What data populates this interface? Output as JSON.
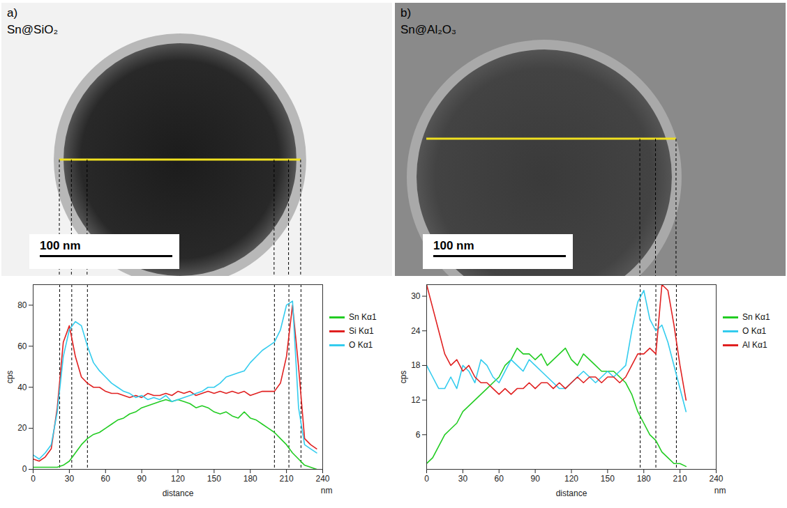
{
  "chart_data": [
    {
      "type": "line",
      "panel_label": "a)",
      "title": "Sn@SiO₂",
      "scale_bar": "100 nm",
      "xlabel": "distance",
      "x_unit": "nm",
      "ylabel": "cps",
      "xlim": [
        0,
        240
      ],
      "xticks": [
        0,
        30,
        60,
        90,
        120,
        150,
        180,
        210,
        240
      ],
      "ylim": [
        0,
        90
      ],
      "yticks": [
        0,
        20,
        40,
        60,
        80
      ],
      "vlines": [
        22,
        32,
        45,
        200,
        212,
        222
      ],
      "legend": "right",
      "x": [
        0,
        5,
        10,
        15,
        20,
        25,
        30,
        35,
        40,
        45,
        50,
        55,
        60,
        65,
        70,
        75,
        80,
        85,
        90,
        95,
        100,
        105,
        110,
        115,
        120,
        125,
        130,
        135,
        140,
        145,
        150,
        155,
        160,
        165,
        170,
        175,
        180,
        185,
        190,
        195,
        200,
        205,
        210,
        215,
        220,
        225,
        230,
        235
      ],
      "series": [
        {
          "name": "Sn Kα1",
          "color": "#22cc22",
          "values": [
            1,
            1,
            1,
            1,
            1,
            2,
            4,
            8,
            12,
            15,
            17,
            18,
            20,
            22,
            24,
            25,
            27,
            28,
            30,
            31,
            32,
            33,
            34,
            33,
            34,
            33,
            32,
            30,
            31,
            30,
            28,
            27,
            28,
            26,
            25,
            28,
            25,
            24,
            22,
            20,
            18,
            15,
            12,
            8,
            5,
            2,
            1,
            0
          ]
        },
        {
          "name": "Si Kα1",
          "color": "#e02020",
          "values": [
            5,
            4,
            6,
            10,
            30,
            62,
            70,
            55,
            45,
            42,
            40,
            40,
            38,
            37,
            37,
            36,
            35,
            36,
            35,
            37,
            36,
            36,
            37,
            36,
            38,
            37,
            38,
            36,
            37,
            38,
            37,
            38,
            37,
            38,
            37,
            38,
            36,
            37,
            38,
            38,
            38,
            42,
            55,
            80,
            50,
            15,
            12,
            10
          ]
        },
        {
          "name": "O Kα1",
          "color": "#33ccee",
          "values": [
            7,
            5,
            8,
            12,
            28,
            55,
            68,
            72,
            70,
            60,
            52,
            48,
            45,
            42,
            40,
            38,
            37,
            35,
            36,
            34,
            35,
            34,
            36,
            33,
            34,
            35,
            36,
            37,
            38,
            40,
            40,
            42,
            45,
            46,
            47,
            48,
            52,
            55,
            58,
            60,
            62,
            68,
            80,
            82,
            30,
            12,
            10,
            8
          ]
        }
      ]
    },
    {
      "type": "line",
      "panel_label": "b)",
      "title": "Sn@Al₂O₃",
      "scale_bar": "100 nm",
      "xlabel": "distance",
      "x_unit": "nm",
      "ylabel": "cps",
      "xlim": [
        0,
        240
      ],
      "xticks": [
        0,
        30,
        60,
        90,
        120,
        150,
        180,
        210,
        240
      ],
      "ylim": [
        0,
        32
      ],
      "yticks": [
        6,
        12,
        18,
        24,
        30
      ],
      "vlines": [
        177,
        190,
        207
      ],
      "legend": "right",
      "x": [
        0,
        5,
        10,
        15,
        20,
        25,
        30,
        35,
        40,
        45,
        50,
        55,
        60,
        65,
        70,
        75,
        80,
        85,
        90,
        95,
        100,
        105,
        110,
        115,
        120,
        125,
        130,
        135,
        140,
        145,
        150,
        155,
        160,
        165,
        170,
        175,
        180,
        185,
        190,
        195,
        200,
        205,
        210,
        215
      ],
      "series": [
        {
          "name": "Sn Kα1",
          "color": "#22cc22",
          "values": [
            1,
            2,
            4,
            6,
            7,
            8,
            10,
            11,
            12,
            13,
            14,
            15,
            16,
            18,
            19,
            21,
            20,
            20,
            19,
            20,
            18,
            19,
            20,
            21,
            19,
            18,
            20,
            19,
            18,
            17,
            17,
            17,
            16,
            15,
            13,
            10,
            8,
            6,
            5,
            3,
            2,
            1,
            1,
            0.5
          ]
        },
        {
          "name": "O Kα1",
          "color": "#33ccee",
          "values": [
            18,
            16,
            14,
            14,
            16,
            14,
            18,
            17,
            15,
            19,
            18,
            16,
            15,
            17,
            19,
            18,
            17,
            19,
            18,
            17,
            16,
            15,
            14,
            14,
            15,
            16,
            17,
            16,
            15,
            16,
            17,
            16,
            17,
            18,
            24,
            29,
            31,
            26,
            24,
            25,
            22,
            18,
            14,
            10
          ]
        },
        {
          "name": "Al Kα1",
          "color": "#e02020",
          "values": [
            32,
            28,
            24,
            20,
            18,
            19,
            17,
            18,
            16,
            15,
            15,
            14,
            13,
            14,
            13,
            14,
            14,
            15,
            14,
            15,
            15,
            14,
            15,
            14,
            15,
            16,
            15,
            16,
            16,
            15,
            16,
            16,
            15,
            16,
            18,
            20,
            20,
            21,
            20,
            32,
            31,
            25,
            18,
            12
          ]
        }
      ]
    }
  ]
}
